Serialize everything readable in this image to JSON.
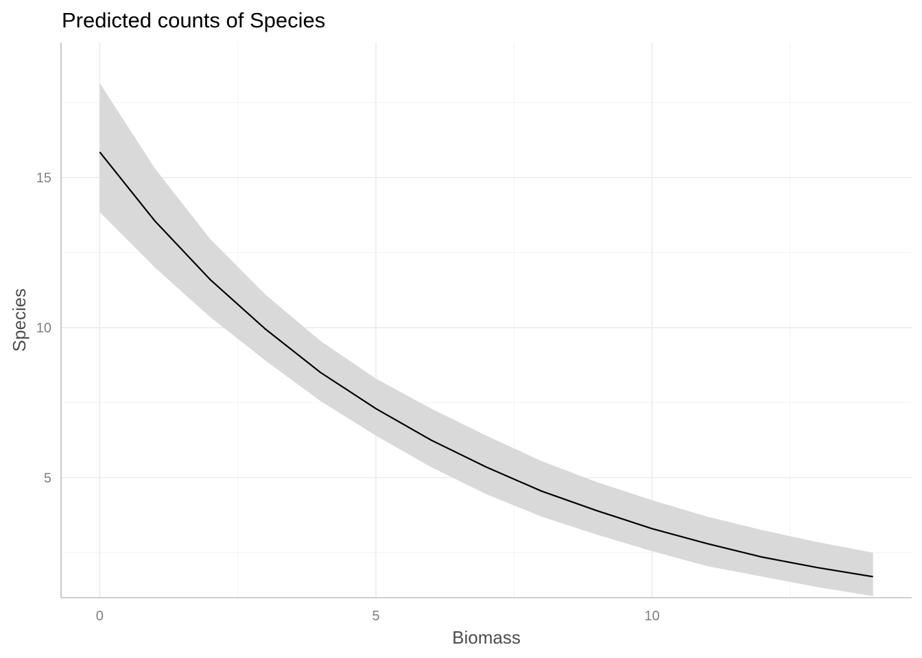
{
  "chart_data": {
    "type": "line",
    "title": "Predicted counts of Species",
    "xlabel": "Biomass",
    "ylabel": "Species",
    "xlim": [
      -0.7,
      14.7
    ],
    "ylim": [
      1.0,
      19.5
    ],
    "x_ticks": [
      0,
      5,
      10
    ],
    "x_tick_labels": [
      "0",
      "5",
      "10"
    ],
    "y_ticks": [
      5,
      10,
      15
    ],
    "y_tick_labels": [
      "5",
      "10",
      "15"
    ],
    "grid": true,
    "legend": "none",
    "series": [
      {
        "x": [
          0,
          1,
          2,
          3,
          4,
          5,
          6,
          7,
          8,
          9,
          10,
          11,
          12,
          13,
          14
        ],
        "y": [
          15.85,
          13.55,
          11.6,
          9.95,
          8.5,
          7.3,
          6.25,
          5.35,
          4.55,
          3.9,
          3.3,
          2.8,
          2.35,
          2.0,
          1.7
        ],
        "ci_low": [
          13.85,
          12.0,
          10.35,
          8.9,
          7.55,
          6.4,
          5.35,
          4.45,
          3.7,
          3.1,
          2.55,
          2.05,
          1.7,
          1.35,
          1.05
        ],
        "ci_high": [
          18.15,
          15.3,
          12.95,
          11.1,
          9.55,
          8.3,
          7.3,
          6.4,
          5.55,
          4.85,
          4.25,
          3.7,
          3.25,
          2.85,
          2.5
        ]
      }
    ],
    "colors": {
      "line": "#000000",
      "ribbon": "#d9d9d9",
      "grid": "#ebebeb",
      "axis": "#bdbdbd"
    }
  }
}
